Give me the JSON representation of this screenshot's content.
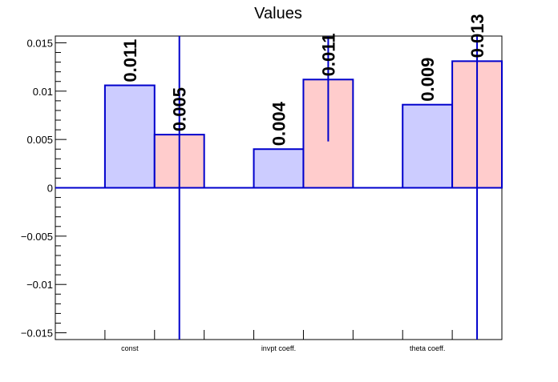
{
  "chart_data": {
    "type": "bar",
    "title": "Values",
    "xlabel": "",
    "ylabel": "",
    "categories": [
      "const",
      "invpt coeff.",
      "theta coeff."
    ],
    "series": [
      {
        "values": [
          0.0106,
          0.004,
          0.0086
        ],
        "labels": [
          "0.011",
          "0.004",
          "0.009"
        ],
        "errors": [
          null,
          null,
          null
        ],
        "fill": "#ccccff",
        "stroke": "#0000cc"
      },
      {
        "values": [
          0.0055,
          0.0112,
          0.0131
        ],
        "labels": [
          "0.005",
          "0.011",
          "0.013"
        ],
        "errors": [
          0.0365,
          0.0064,
          0.0365
        ],
        "fill": "#ffcccc",
        "stroke": "#0000cc"
      }
    ],
    "ylim": [
      -0.0157,
      0.0157
    ],
    "yticks": [
      -0.015,
      -0.01,
      -0.005,
      0,
      0.005,
      0.01,
      0.015
    ],
    "ytick_labels": [
      "−0.015",
      "−0.01",
      "−0.005",
      "0",
      "0.005",
      "0.01",
      "0.015"
    ],
    "grid": false,
    "colors": {
      "axis": "#000000",
      "zero_line": "#0000cc",
      "error_bar": "#0000cc"
    }
  }
}
